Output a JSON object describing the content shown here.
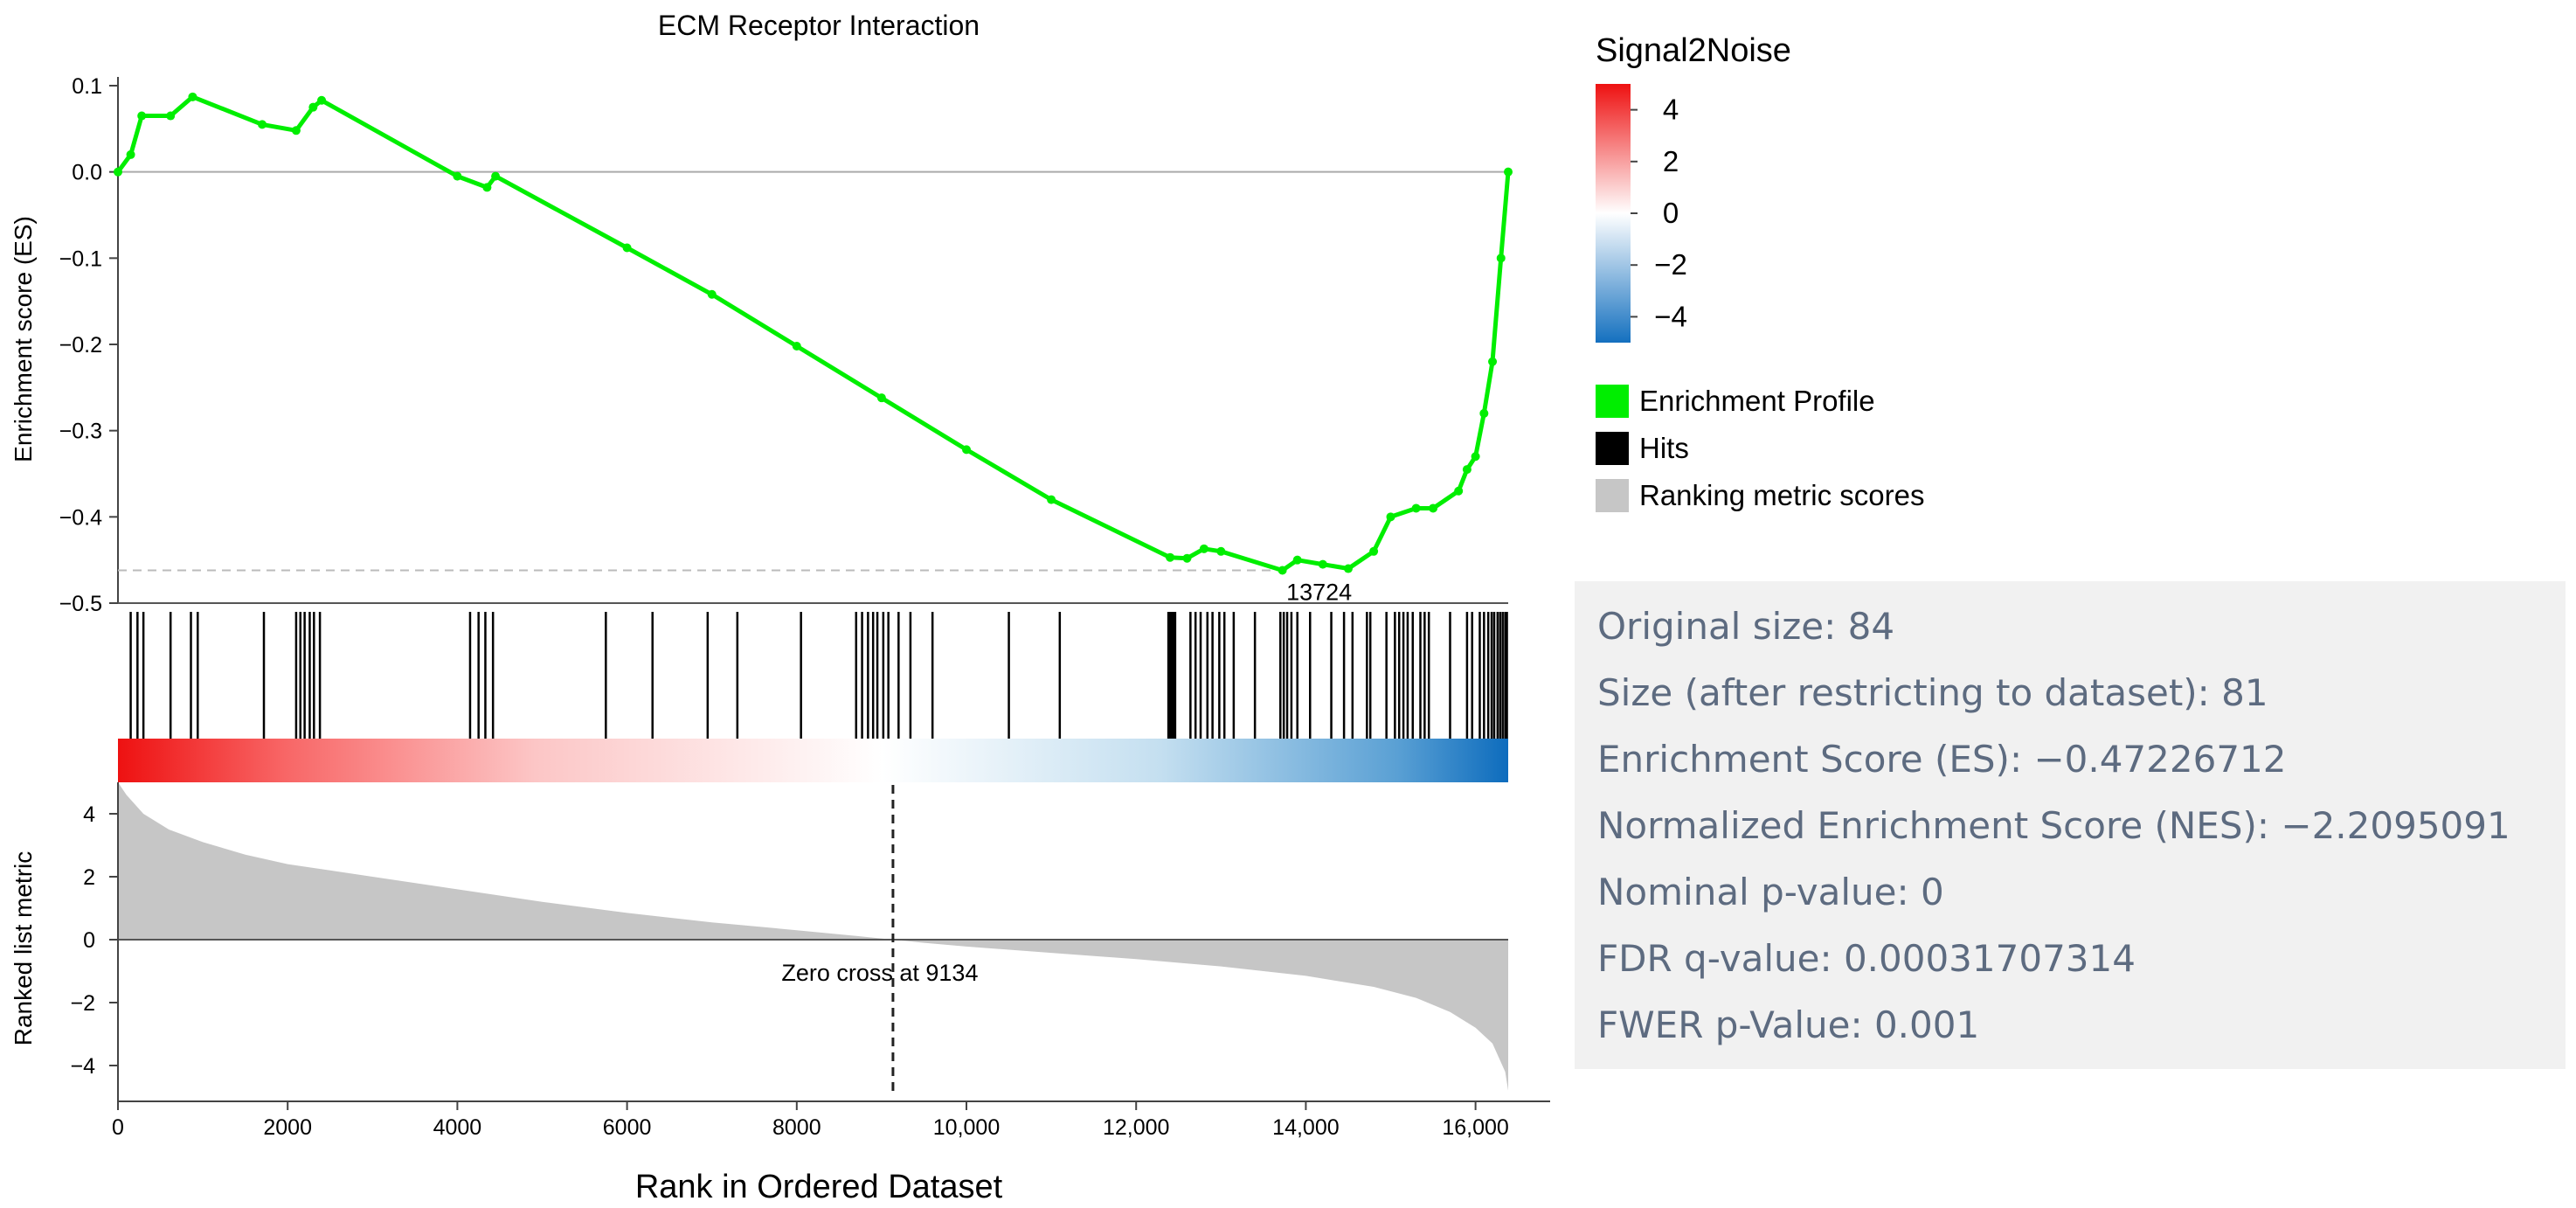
{
  "chart_data": {
    "type": "line",
    "title": "ECM Receptor Interaction",
    "xlabel": "Rank in Ordered Dataset",
    "ylabel": "Enrichment score (ES)",
    "ylim": [
      -0.5,
      0.1
    ],
    "xlim": [
      0,
      16385
    ],
    "x_ticks": [
      0,
      2000,
      4000,
      6000,
      8000,
      10000,
      12000,
      14000,
      16000
    ],
    "x_tick_labels": [
      "0",
      "2000",
      "4000",
      "6000",
      "8000",
      "10,000",
      "12,000",
      "14,000",
      "16,000"
    ],
    "y_ticks": [
      0.1,
      0.0,
      -0.1,
      -0.2,
      -0.3,
      -0.4,
      -0.5
    ],
    "y_tick_labels": [
      "0.1",
      "0.0",
      "−0.1",
      "−0.2",
      "−0.3",
      "−0.4",
      "−0.5"
    ],
    "series": [
      {
        "name": "Enrichment Profile",
        "color": "#00ee00",
        "x": [
          0,
          150,
          280,
          620,
          880,
          1700,
          2100,
          2300,
          2400,
          4000,
          4350,
          4450,
          6000,
          7000,
          8000,
          9000,
          10000,
          11000,
          12400,
          12600,
          12800,
          13000,
          13724,
          13900,
          14200,
          14500,
          14800,
          15000,
          15300,
          15500,
          15800,
          15900,
          16000,
          16100,
          16200,
          16300,
          16385
        ],
        "y": [
          0.0,
          0.02,
          0.065,
          0.065,
          0.087,
          0.055,
          0.048,
          0.075,
          0.083,
          -0.005,
          -0.018,
          -0.005,
          -0.088,
          -0.142,
          -0.202,
          -0.262,
          -0.322,
          -0.38,
          -0.447,
          -0.448,
          -0.437,
          -0.44,
          -0.462,
          -0.45,
          -0.455,
          -0.46,
          -0.44,
          -0.4,
          -0.39,
          -0.39,
          -0.37,
          -0.345,
          -0.33,
          -0.28,
          -0.22,
          -0.1,
          0.0
        ]
      }
    ],
    "max_deviation": {
      "label": "13724",
      "rank": 13724,
      "es": -0.462
    },
    "hits": {
      "name": "Hits",
      "color": "#000000",
      "ranks": [
        150,
        230,
        300,
        620,
        860,
        940,
        1720,
        2100,
        2150,
        2200,
        2260,
        2310,
        2380,
        4150,
        4250,
        4330,
        4420,
        5750,
        6300,
        6950,
        7300,
        8050,
        8700,
        8770,
        8840,
        8900,
        8950,
        9020,
        9080,
        9200,
        9340,
        9600,
        10500,
        11100,
        12380,
        12400,
        12420,
        12440,
        12460,
        12640,
        12700,
        12760,
        12840,
        12900,
        12980,
        13040,
        13150,
        13400,
        13700,
        13740,
        13780,
        13830,
        13900,
        14050,
        14300,
        14450,
        14550,
        14720,
        14760,
        14950,
        15050,
        15100,
        15150,
        15200,
        15260,
        15350,
        15400,
        15450,
        15700,
        15900,
        15960,
        16050,
        16100,
        16150,
        16190,
        16220,
        16260,
        16290,
        16320,
        16350,
        16370
      ]
    },
    "colorbar": {
      "title": "Signal2Noise",
      "ticks": [
        4,
        2,
        0,
        -2,
        -4
      ],
      "tick_labels": [
        "4",
        "2",
        "0",
        "−2",
        "−4"
      ],
      "range": [
        5,
        -5
      ],
      "colors": [
        "#ee1111",
        "#ffffff",
        "#1470bf"
      ]
    },
    "ranked_metric": {
      "name": "Ranking metric scores",
      "color": "#c6c6c6",
      "ylabel": "Ranked list metric",
      "ylim": [
        -5,
        5
      ],
      "y_ticks": [
        4,
        2,
        0,
        -2,
        -4
      ],
      "y_tick_labels": [
        "4",
        "2",
        "0",
        "−2",
        "−4"
      ],
      "x": [
        0,
        100,
        300,
        600,
        1000,
        1500,
        2000,
        3000,
        4000,
        5000,
        6000,
        7000,
        8000,
        8700,
        9134,
        9500,
        10000,
        11000,
        12000,
        13000,
        14000,
        14800,
        15300,
        15700,
        16000,
        16200,
        16350,
        16385
      ],
      "y": [
        5.0,
        4.6,
        4.0,
        3.5,
        3.1,
        2.7,
        2.4,
        2.0,
        1.6,
        1.2,
        0.85,
        0.55,
        0.3,
        0.12,
        0.0,
        -0.1,
        -0.22,
        -0.42,
        -0.62,
        -0.85,
        -1.15,
        -1.5,
        -1.85,
        -2.3,
        -2.8,
        -3.3,
        -4.2,
        -4.8
      ],
      "zero_cross": {
        "label": "Zero cross at 9134",
        "rank": 9134
      }
    },
    "legend": {
      "placement": "right",
      "items": [
        {
          "name": "Enrichment Profile",
          "color": "#00ee00"
        },
        {
          "name": "Hits",
          "color": "#000000"
        },
        {
          "name": "Ranking metric scores",
          "color": "#c6c6c6"
        }
      ]
    }
  },
  "stats": [
    "Original size: 84",
    "Size (after restricting to dataset): 81",
    "Enrichment Score (ES): −0.47226712",
    "Normalized Enrichment Score (NES): −2.2095091",
    "Nominal p-value: 0",
    "FDR q-value: 0.00031707314",
    "FWER p-Value: 0.001"
  ]
}
